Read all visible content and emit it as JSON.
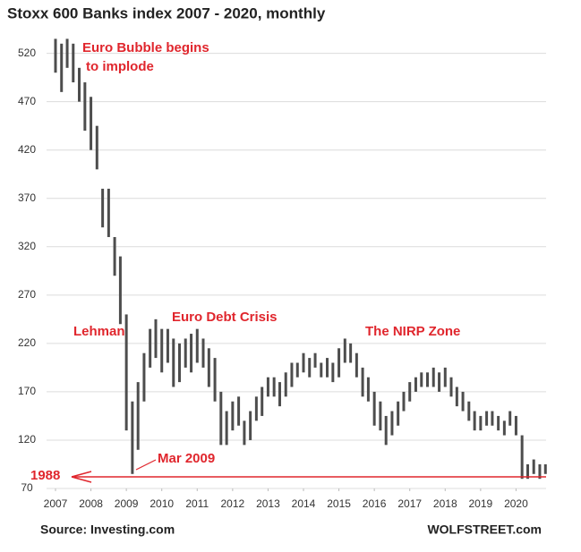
{
  "chart_data": {
    "type": "range-bar",
    "title": "Stoxx 600 Banks index 2007 - 2020, monthly",
    "source": "Source: Investing.com",
    "brand": "WOLFSTREET.com",
    "color": "#4d4d4d",
    "reference_color": "#e0262d",
    "grid": true,
    "xlim": [
      2007,
      2021
    ],
    "xticks": [
      2007,
      2008,
      2009,
      2010,
      2011,
      2012,
      2013,
      2014,
      2015,
      2016,
      2017,
      2018,
      2019,
      2020
    ],
    "ylim": [
      70,
      540
    ],
    "yticks": [
      70,
      120,
      170,
      220,
      270,
      320,
      370,
      420,
      470,
      520
    ],
    "reference_line": {
      "value": 82,
      "label": "1988"
    },
    "annotations": [
      "Euro Bubble begins",
      "to implode",
      "Lehman",
      "Euro Debt Crisis",
      "The NIRP Zone",
      "Mar 2009"
    ],
    "x": [
      2007.0,
      2007.17,
      2007.33,
      2007.5,
      2007.67,
      2007.83,
      2008.0,
      2008.17,
      2008.33,
      2008.5,
      2008.67,
      2008.83,
      2009.0,
      2009.17,
      2009.33,
      2009.5,
      2009.67,
      2009.83,
      2010.0,
      2010.17,
      2010.33,
      2010.5,
      2010.67,
      2010.83,
      2011.0,
      2011.17,
      2011.33,
      2011.5,
      2011.67,
      2011.83,
      2012.0,
      2012.17,
      2012.33,
      2012.5,
      2012.67,
      2012.83,
      2013.0,
      2013.17,
      2013.33,
      2013.5,
      2013.67,
      2013.83,
      2014.0,
      2014.17,
      2014.33,
      2014.5,
      2014.67,
      2014.83,
      2015.0,
      2015.17,
      2015.33,
      2015.5,
      2015.67,
      2015.83,
      2016.0,
      2016.17,
      2016.33,
      2016.5,
      2016.67,
      2016.83,
      2017.0,
      2017.17,
      2017.33,
      2017.5,
      2017.67,
      2017.83,
      2018.0,
      2018.17,
      2018.33,
      2018.5,
      2018.67,
      2018.83,
      2019.0,
      2019.17,
      2019.33,
      2019.5,
      2019.67,
      2019.83,
      2020.0,
      2020.17,
      2020.33,
      2020.5,
      2020.67,
      2020.83
    ],
    "low": [
      500,
      480,
      505,
      490,
      470,
      440,
      420,
      400,
      340,
      330,
      290,
      240,
      130,
      85,
      110,
      160,
      195,
      205,
      190,
      200,
      175,
      180,
      195,
      190,
      200,
      195,
      175,
      160,
      115,
      115,
      130,
      135,
      115,
      120,
      140,
      145,
      165,
      165,
      155,
      165,
      175,
      185,
      190,
      185,
      195,
      185,
      185,
      180,
      185,
      200,
      200,
      185,
      165,
      160,
      135,
      130,
      115,
      125,
      135,
      150,
      160,
      170,
      175,
      175,
      175,
      170,
      175,
      165,
      155,
      150,
      140,
      130,
      130,
      135,
      135,
      130,
      125,
      135,
      125,
      80,
      80,
      85,
      80,
      85
    ],
    "high": [
      535,
      530,
      535,
      530,
      505,
      490,
      475,
      445,
      380,
      380,
      330,
      310,
      250,
      160,
      180,
      210,
      235,
      245,
      235,
      235,
      225,
      220,
      225,
      230,
      235,
      225,
      215,
      205,
      170,
      150,
      160,
      165,
      140,
      150,
      165,
      175,
      185,
      185,
      180,
      190,
      200,
      200,
      210,
      205,
      210,
      200,
      205,
      200,
      215,
      225,
      220,
      210,
      195,
      185,
      170,
      160,
      145,
      150,
      160,
      170,
      180,
      185,
      190,
      190,
      195,
      190,
      195,
      185,
      175,
      170,
      160,
      150,
      145,
      150,
      150,
      145,
      140,
      150,
      145,
      125,
      95,
      100,
      95,
      95
    ]
  }
}
